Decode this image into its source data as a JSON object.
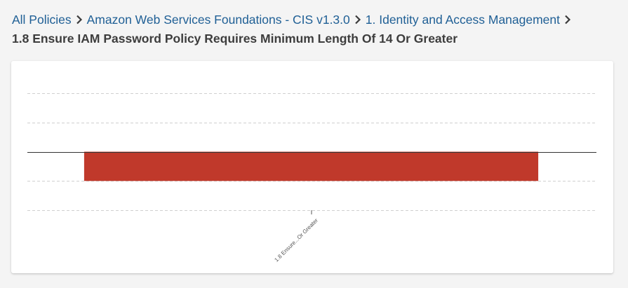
{
  "breadcrumb": {
    "items": [
      {
        "label": "All Policies"
      },
      {
        "label": "Amazon Web Services Foundations - CIS v1.3.0"
      },
      {
        "label": "1. Identity and Access Management"
      }
    ],
    "current": "1.8 Ensure IAM Password Policy Requires Minimum Length Of 14 Or Greater"
  },
  "chart_data": {
    "type": "bar",
    "categories": [
      "1.8 Ensure...Or Greater"
    ],
    "series": [
      {
        "values": [
          -1
        ],
        "color": "#c0392b"
      }
    ],
    "ylim": [
      -2,
      2
    ],
    "grid": true,
    "zero_line": true
  }
}
